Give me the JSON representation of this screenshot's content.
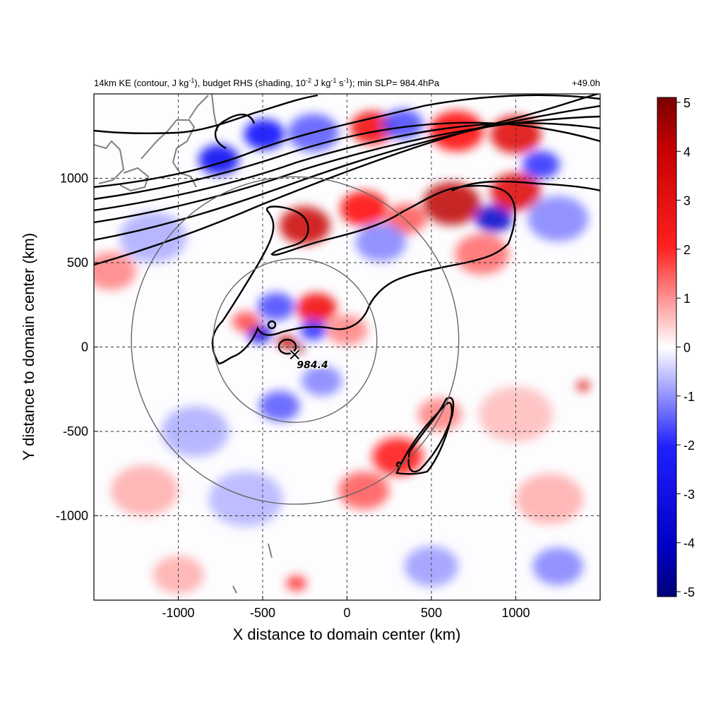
{
  "chart_data": {
    "type": "heatmap",
    "title": {
      "left_parts": [
        "14km KE (contour, J kg",
        "-1",
        "), budget RHS (shading, 10",
        "-2",
        " J kg",
        "-1",
        " s",
        "-1",
        "); min SLP= 984.4hPa"
      ],
      "right": "+49.0h"
    },
    "xlabel": "X distance to domain center (km)",
    "ylabel": "Y distance to domain center (km)",
    "xlim": [
      -1500,
      1500
    ],
    "ylim": [
      -1500,
      1500
    ],
    "xticks": [
      -1000,
      -500,
      0,
      500,
      1000
    ],
    "yticks": [
      -1000,
      -500,
      0,
      500,
      1000
    ],
    "xtick_labels": [
      "-1000",
      "-500",
      "0",
      "500",
      "1000"
    ],
    "ytick_labels": [
      "-1000",
      "-500",
      "0",
      "500",
      "1000"
    ],
    "grid": true,
    "colorbar": {
      "min": -5,
      "max": 5,
      "ticks": [
        5,
        4,
        3,
        2,
        1,
        0,
        -1,
        -2,
        -3,
        -4,
        -5
      ],
      "tick_labels": [
        "5",
        "4",
        "3",
        "2",
        "1",
        "0",
        "-1",
        "-2",
        "-3",
        "-4",
        "-5"
      ],
      "colormap": "blue-white-red",
      "colors": [
        "#00007a",
        "#0000ff",
        "#ffffff",
        "#ff0000",
        "#7a0000"
      ]
    },
    "storm_center": {
      "x": -310,
      "y": -45,
      "label": "984.4",
      "marker": "x"
    },
    "range_rings_km": [
      500,
      1000
    ],
    "shading_blobs": [
      {
        "x": -760,
        "y": 1110,
        "v": -3.2,
        "r": 120
      },
      {
        "x": -490,
        "y": 1260,
        "v": -3.0,
        "r": 120
      },
      {
        "x": -200,
        "y": 1270,
        "v": -2.0,
        "r": 150
      },
      {
        "x": 150,
        "y": 1300,
        "v": 3.2,
        "r": 130
      },
      {
        "x": 330,
        "y": 1320,
        "v": -2.2,
        "r": 120
      },
      {
        "x": 650,
        "y": 1280,
        "v": 3.0,
        "r": 160
      },
      {
        "x": 1000,
        "y": 1260,
        "v": 3.5,
        "r": 150
      },
      {
        "x": 1150,
        "y": 1080,
        "v": -2.5,
        "r": 110
      },
      {
        "x": -250,
        "y": 720,
        "v": 3.8,
        "r": 150
      },
      {
        "x": 100,
        "y": 820,
        "v": 3.0,
        "r": 140
      },
      {
        "x": 350,
        "y": 760,
        "v": 2.0,
        "r": 120
      },
      {
        "x": 620,
        "y": 850,
        "v": 4.0,
        "r": 170
      },
      {
        "x": 870,
        "y": 760,
        "v": -3.8,
        "r": 110
      },
      {
        "x": 1000,
        "y": 920,
        "v": 3.5,
        "r": 150
      },
      {
        "x": 1250,
        "y": 760,
        "v": -1.5,
        "r": 180
      },
      {
        "x": 200,
        "y": 620,
        "v": -1.5,
        "r": 150
      },
      {
        "x": 800,
        "y": 550,
        "v": 1.8,
        "r": 160
      },
      {
        "x": -1150,
        "y": 650,
        "v": -1.0,
        "r": 200
      },
      {
        "x": -1400,
        "y": 450,
        "v": 1.5,
        "r": 150
      },
      {
        "x": -180,
        "y": 230,
        "v": 3.2,
        "r": 120
      },
      {
        "x": -420,
        "y": 240,
        "v": -2.2,
        "r": 110
      },
      {
        "x": -520,
        "y": 80,
        "v": -3.5,
        "r": 75
      },
      {
        "x": -360,
        "y": 30,
        "v": 4.0,
        "r": 55
      },
      {
        "x": -290,
        "y": -10,
        "v": 4.8,
        "r": 35
      },
      {
        "x": -200,
        "y": 100,
        "v": -2.5,
        "r": 80
      },
      {
        "x": -600,
        "y": 150,
        "v": 2.2,
        "r": 80
      },
      {
        "x": -150,
        "y": -200,
        "v": -1.5,
        "r": 120
      },
      {
        "x": -400,
        "y": -350,
        "v": -2.0,
        "r": 120
      },
      {
        "x": 0,
        "y": 100,
        "v": 1.5,
        "r": 120
      },
      {
        "x": 300,
        "y": -650,
        "v": 2.8,
        "r": 150
      },
      {
        "x": 100,
        "y": -850,
        "v": 2.0,
        "r": 150
      },
      {
        "x": 550,
        "y": -400,
        "v": 1.5,
        "r": 130
      },
      {
        "x": -900,
        "y": -500,
        "v": -1.0,
        "r": 200
      },
      {
        "x": -1200,
        "y": -850,
        "v": 1.0,
        "r": 200
      },
      {
        "x": -600,
        "y": -900,
        "v": -0.9,
        "r": 220
      },
      {
        "x": 1000,
        "y": -400,
        "v": 0.8,
        "r": 220
      },
      {
        "x": 1200,
        "y": -900,
        "v": 1.0,
        "r": 200
      },
      {
        "x": 1250,
        "y": -1300,
        "v": -1.5,
        "r": 150
      },
      {
        "x": 500,
        "y": -1300,
        "v": -1.2,
        "r": 160
      },
      {
        "x": -1000,
        "y": -1350,
        "v": 1.0,
        "r": 150
      },
      {
        "x": 1400,
        "y": -230,
        "v": 3.5,
        "r": 40
      },
      {
        "x": -300,
        "y": -1400,
        "v": 2.5,
        "r": 60
      }
    ]
  }
}
